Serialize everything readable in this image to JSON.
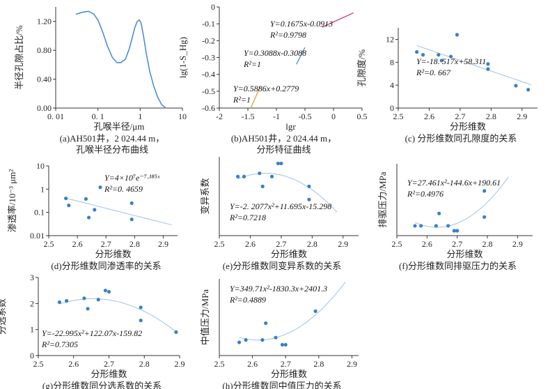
{
  "colors": {
    "point": "#3b7fc4",
    "fit": "#9ec2e6",
    "curve": "#4a8fd4",
    "line_blue": "#4a8fd4",
    "line_magenta": "#d63384",
    "line_orange": "#e0a040"
  },
  "chart_data": [
    {
      "id": "a",
      "type": "line",
      "log_x": true,
      "caption": [
        "(a)AH501井，2 024.44 m，",
        "孔喉半径分布曲线"
      ],
      "xlabel": "孔喉半径/μm",
      "ylabel": "半径孔隙占比/%",
      "xlim": [
        0.01,
        10
      ],
      "ylim": [
        0,
        1.4
      ],
      "xticks": [
        0.01,
        0.1,
        1,
        10
      ],
      "xtick_labels": [
        "0. 01",
        "0. 1",
        "1",
        "10"
      ],
      "yticks": [
        0,
        0.4,
        0.8,
        1.2
      ],
      "ytick_labels": [
        "0.00",
        "0.40",
        "0.80",
        "1.20"
      ],
      "x": [
        0.03,
        0.045,
        0.06,
        0.08,
        0.1,
        0.13,
        0.17,
        0.22,
        0.28,
        0.35,
        0.45,
        0.55,
        0.65,
        0.75,
        0.85,
        0.95,
        1.05,
        1.2,
        1.4,
        1.7,
        2.1,
        2.6,
        3.2,
        4.0
      ],
      "y": [
        1.3,
        1.33,
        1.34,
        1.3,
        1.22,
        1.05,
        0.85,
        0.7,
        0.63,
        0.63,
        0.68,
        0.82,
        0.98,
        1.12,
        1.2,
        1.22,
        1.18,
        1.0,
        0.75,
        0.5,
        0.3,
        0.15,
        0.05,
        0.0
      ]
    },
    {
      "id": "b",
      "type": "line",
      "caption": [
        "(b)AH501井，2 024.44 m，",
        "分形特征曲线"
      ],
      "xlabel": "lgr",
      "ylabel": "lg(1-S_Hg)",
      "xlim": [
        -2,
        0.5
      ],
      "ylim": [
        -0.6,
        0
      ],
      "xticks": [
        -2,
        -1.5,
        -1,
        -0.5,
        0,
        0.5
      ],
      "xtick_labels": [
        "-2",
        "-1.5",
        "-1",
        "-0.5",
        "0",
        "0.5"
      ],
      "yticks": [
        -0.6,
        -0.5,
        -0.4,
        -0.3,
        -0.2,
        -0.1,
        0
      ],
      "ytick_labels": [
        "-0.6",
        "-0.5",
        "-0.4",
        "-0.3",
        "-0.2",
        "-0.1",
        "0"
      ],
      "segments": [
        {
          "color_key": "line_orange",
          "x": [
            -1.45,
            -1.28
          ],
          "y": [
            -0.6,
            -0.47
          ]
        },
        {
          "color_key": "line_blue",
          "x": [
            -0.65,
            -0.5
          ],
          "y": [
            -0.34,
            -0.24
          ]
        },
        {
          "color_key": "line_magenta",
          "x": [
            -0.2,
            0.35
          ],
          "y": [
            -0.12,
            -0.035
          ]
        }
      ],
      "annotations": [
        {
          "eq": "Y=0.1675x-0.0913",
          "r2": "R²=0.9798"
        },
        {
          "eq": "Y=0.3088x-0.3088",
          "r2": "R²=1"
        },
        {
          "eq": "Y=0.5886x+0.2779",
          "r2": "R²=1"
        }
      ]
    },
    {
      "id": "c",
      "type": "scatter",
      "caption": [
        "(c) 分形维数同孔隙度的关系"
      ],
      "xlabel": "分形维数",
      "ylabel": "孔隙度/%",
      "xlim": [
        2.5,
        2.95
      ],
      "ylim": [
        0,
        14
      ],
      "xticks": [
        2.5,
        2.6,
        2.7,
        2.8,
        2.9
      ],
      "xtick_labels": [
        "2.5",
        "2.6",
        "2.7",
        "2.8",
        "2.9"
      ],
      "yticks": [
        0,
        4,
        8,
        12
      ],
      "ytick_labels": [
        "0",
        "4",
        "8",
        "12"
      ],
      "x": [
        2.56,
        2.58,
        2.63,
        2.64,
        2.67,
        2.69,
        2.79,
        2.79,
        2.88,
        2.92
      ],
      "y": [
        9.8,
        9.3,
        9.3,
        8.3,
        9.0,
        12.8,
        7.7,
        6.8,
        3.9,
        3.2
      ],
      "fit": {
        "kind": "linear",
        "a": -18.517,
        "b": 58.311
      },
      "eq": "Y=-18. 517x+58.311",
      "r2": "R²=0. 667"
    },
    {
      "id": "d",
      "type": "scatter",
      "log_y": true,
      "caption": [
        "(d)分形维数同渗透率的关系"
      ],
      "xlabel": "分形维数",
      "ylabel": "渗透率/10⁻³ μm²",
      "xlim": [
        2.5,
        2.95
      ],
      "ylim": [
        0.01,
        10
      ],
      "xticks": [
        2.5,
        2.6,
        2.7,
        2.8,
        2.9
      ],
      "xtick_labels": [
        "2.5",
        "2.6",
        "2.7",
        "2.8",
        "2.9"
      ],
      "yticks": [
        0.01,
        0.1,
        1,
        10
      ],
      "ytick_labels": [
        "0.01",
        "0.1",
        "1",
        "10"
      ],
      "x": [
        2.56,
        2.57,
        2.63,
        2.64,
        2.66,
        2.68,
        2.79,
        2.79
      ],
      "y": [
        0.4,
        0.2,
        0.38,
        0.06,
        0.13,
        1.2,
        0.25,
        0.05
      ],
      "fit": {
        "kind": "exp",
        "a": 40000000,
        "b": -7.185
      },
      "eq": "Y=4×10⁷e⁻⁷·¹⁸⁵ˣ",
      "r2": "R²=0. 4659"
    },
    {
      "id": "e",
      "type": "scatter",
      "caption": [
        "(e)分形维数同变异系数的关系"
      ],
      "xlabel": "分形维数",
      "ylabel": "变异系数",
      "xlim": [
        2.5,
        2.95
      ],
      "ylim": [
        0,
        0.24
      ],
      "xticks": [
        2.5,
        2.6,
        2.7,
        2.8,
        2.9
      ],
      "xtick_labels": [
        "2.5",
        "2.6",
        "2.7",
        "2.8",
        "2.9"
      ],
      "yticks": [],
      "ytick_labels": [],
      "x": [
        2.56,
        2.58,
        2.63,
        2.64,
        2.67,
        2.69,
        2.7,
        2.79,
        2.79
      ],
      "y": [
        0.18,
        0.18,
        0.19,
        0.15,
        0.18,
        0.22,
        0.22,
        0.15,
        0.11
      ],
      "fit": {
        "kind": "quad",
        "a": -2.2077,
        "b": 11.695,
        "c": -15.298,
        "x0": 2.56,
        "x1": 2.88
      },
      "eq": "Y=-2. 2077x²+11.695x-15.298",
      "r2": "R²=0.7218"
    },
    {
      "id": "f",
      "type": "scatter",
      "caption": [
        "(f)分形维数同排驱压力的关系"
      ],
      "xlabel": "分形维数",
      "ylabel": "排驱压力/MPa",
      "xlim": [
        2.5,
        2.95
      ],
      "ylim": [
        0,
        2.2
      ],
      "xticks": [
        2.5,
        2.6,
        2.7,
        2.8,
        2.9
      ],
      "xtick_labels": [
        "2.5",
        "2.6",
        "2.7",
        "2.8",
        "2.9"
      ],
      "yticks": [],
      "ytick_labels": [],
      "x": [
        2.56,
        2.58,
        2.63,
        2.64,
        2.67,
        2.69,
        2.7,
        2.79,
        2.79
      ],
      "y": [
        0.3,
        0.3,
        0.3,
        0.68,
        0.3,
        0.15,
        0.15,
        1.37,
        0.57
      ],
      "fit": {
        "kind": "quad",
        "a": 27.461,
        "b": -144.6,
        "c": 190.61,
        "x0": 2.56,
        "x1": 2.87
      },
      "eq": "Y=27.461x²-144.6x+190.61",
      "r2": "R²=0.4976"
    },
    {
      "id": "g",
      "type": "scatter",
      "caption": [
        "(g)分形维数同分选系数的关系"
      ],
      "xlabel": "分形维数",
      "ylabel": "分选系数",
      "xlim": [
        2.5,
        2.9
      ],
      "ylim": [
        0,
        3
      ],
      "xticks": [
        2.5,
        2.6,
        2.7,
        2.8,
        2.9
      ],
      "xtick_labels": [
        "2.5",
        "2.6",
        "2.7",
        "2.8",
        "2.9"
      ],
      "yticks": [
        0,
        1,
        2,
        3
      ],
      "ytick_labels": [
        "0",
        "1",
        "2",
        "3"
      ],
      "x": [
        2.56,
        2.58,
        2.63,
        2.64,
        2.67,
        2.69,
        2.7,
        2.79,
        2.79,
        2.89
      ],
      "y": [
        2.05,
        2.1,
        2.2,
        1.8,
        2.15,
        2.5,
        2.45,
        1.85,
        1.35,
        0.9
      ],
      "fit": {
        "kind": "quad",
        "a": -22.995,
        "b": 122.07,
        "c": -159.82,
        "x0": 2.56,
        "x1": 2.89
      },
      "eq": "Y=-22.995x²+122.07x-159.82",
      "r2": "R²=0.7305"
    },
    {
      "id": "h",
      "type": "scatter",
      "caption": [
        "(h)分形维数同中值压力的关系"
      ],
      "xlabel": "分形维数",
      "ylabel": "中值压力/MPa",
      "xlim": [
        2.5,
        2.92
      ],
      "ylim": [
        0,
        32
      ],
      "xticks": [
        2.5,
        2.6,
        2.7,
        2.8,
        2.9
      ],
      "xtick_labels": [
        "2.5",
        "2.6",
        "2.7",
        "2.8",
        "2.9"
      ],
      "yticks": [],
      "ytick_labels": [],
      "x": [
        2.56,
        2.58,
        2.63,
        2.64,
        2.67,
        2.69,
        2.7,
        2.79
      ],
      "y": [
        5.5,
        6.5,
        6.5,
        13.5,
        7.5,
        4.5,
        4.5,
        18.5
      ],
      "fit": {
        "kind": "quad",
        "a": 349.71,
        "b": -1830.3,
        "c": 2401.3,
        "x0": 2.56,
        "x1": 2.88
      },
      "eq": "Y=349.71x²-1830.3x+2401.3",
      "r2": "R²=0.4889"
    }
  ]
}
